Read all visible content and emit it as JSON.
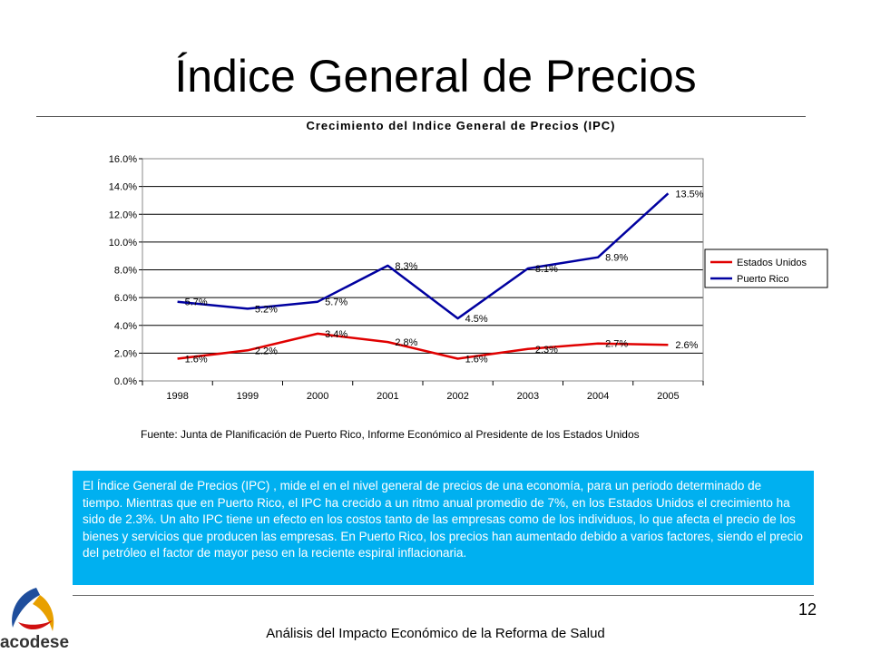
{
  "slide": {
    "title": "Índice General de Precios",
    "source": "Fuente: Junta de Planificación de Puerto Rico, Informe Económico al Presidente de los Estados Unidos",
    "body": "El Índice General de Precios (IPC) , mide el en el nivel general  de precios de una economía, para un periodo determinado de tiempo. Mientras que en Puerto Rico, el IPC ha crecido a un ritmo anual promedio de 7%, en los Estados Unidos el crecimiento ha sido de 2.3%.  Un alto IPC tiene un efecto en los costos tanto de las empresas como de los individuos, lo que afecta el precio de los bienes y servicios que producen las empresas. En Puerto Rico, los precios han aumentado debido a varios factores, siendo el precio del petróleo el factor de mayor peso en la reciente espiral inflacionaria.",
    "page_number": "12",
    "footer": "Análisis del Impacto Económico de la Reforma de Salud",
    "logo_text": "acodese"
  },
  "chart_data": {
    "type": "line",
    "title": "Crecimiento del Indice General de Precios (IPC)",
    "categories": [
      "1998",
      "1999",
      "2000",
      "2001",
      "2002",
      "2003",
      "2004",
      "2005"
    ],
    "series": [
      {
        "name": "Estados Unidos",
        "color": "#e00000",
        "values": [
          1.6,
          2.2,
          3.4,
          2.8,
          1.6,
          2.3,
          2.7,
          2.6
        ],
        "labels": [
          "1.6%",
          "2.2%",
          "3.4%",
          "2.8%",
          "1.6%",
          "2.3%",
          "2.7%",
          "2.6%"
        ]
      },
      {
        "name": "Puerto Rico",
        "color": "#0000a0",
        "values": [
          5.7,
          5.2,
          5.7,
          8.3,
          4.5,
          8.1,
          8.9,
          13.5
        ],
        "labels": [
          "5.7%",
          "5.2%",
          "5.7%",
          "8.3%",
          "4.5%",
          "8.1%",
          "8.9%",
          "13.5%"
        ]
      }
    ],
    "yticks": [
      "0.0%",
      "2.0%",
      "4.0%",
      "6.0%",
      "8.0%",
      "10.0%",
      "12.0%",
      "14.0%",
      "16.0%"
    ],
    "ylim": [
      0,
      16
    ],
    "grid": true,
    "legend": "right"
  }
}
